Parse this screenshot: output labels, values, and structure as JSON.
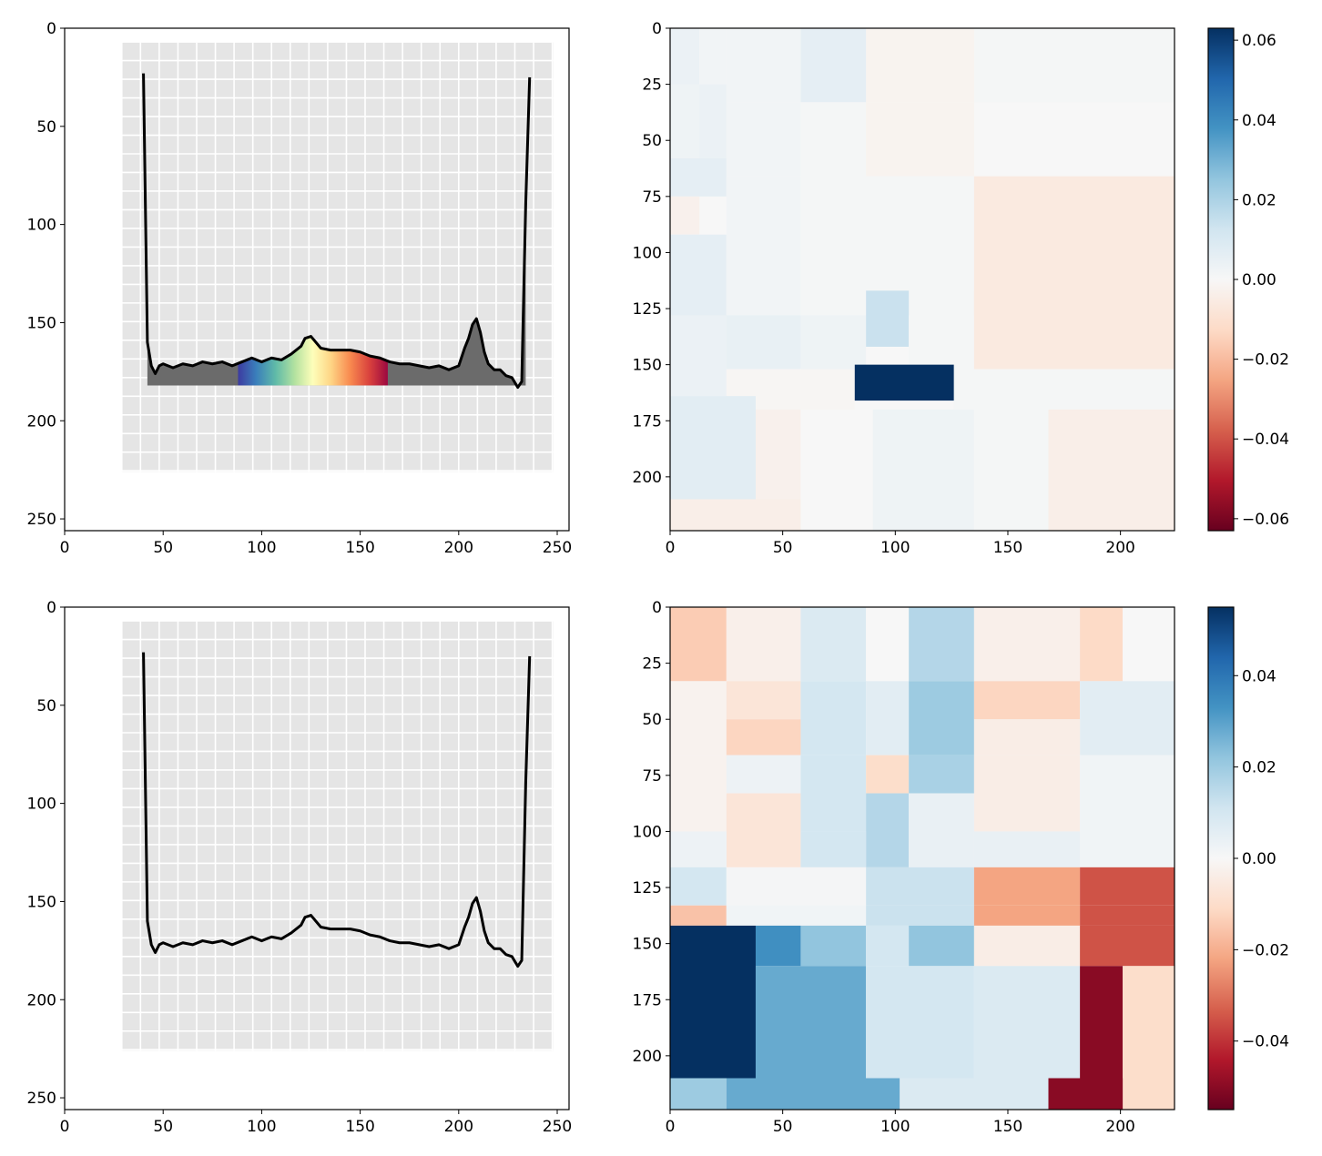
{
  "chart_data": [
    {
      "type": "line",
      "panel": "top-left",
      "xlim": [
        0,
        256
      ],
      "ylim": [
        256,
        0
      ],
      "xticks": [
        0,
        50,
        100,
        150,
        200,
        250
      ],
      "yticks": [
        0,
        50,
        100,
        150,
        200,
        250
      ],
      "tick_labels_x": [
        "0",
        "50",
        "100",
        "150",
        "200",
        "250"
      ],
      "tick_labels_y": [
        "0",
        "50",
        "100",
        "150",
        "200",
        "250"
      ],
      "highlight_x_range": [
        88,
        164
      ],
      "highlight_colormap": "Spectral_r",
      "fill_under_curve": true,
      "series": [
        {
          "x": [
            40,
            42,
            44,
            46,
            48,
            50,
            55,
            60,
            65,
            70,
            75,
            80,
            85,
            90,
            95,
            100,
            105,
            110,
            115,
            120,
            122,
            125,
            130,
            135,
            140,
            145,
            150,
            155,
            160,
            165,
            170,
            175,
            180,
            185,
            190,
            195,
            200,
            203,
            205,
            207,
            209,
            211,
            213,
            215,
            218,
            221,
            224,
            227,
            230,
            232,
            234,
            236
          ],
          "y": [
            23,
            160,
            172,
            176,
            172,
            171,
            173,
            171,
            172,
            170,
            171,
            170,
            172,
            170,
            168,
            170,
            168,
            169,
            166,
            162,
            158,
            157,
            163,
            164,
            164,
            164,
            165,
            167,
            168,
            170,
            171,
            171,
            172,
            173,
            172,
            174,
            172,
            163,
            158,
            151,
            148,
            155,
            165,
            171,
            174,
            174,
            177,
            178,
            183,
            180,
            90,
            25
          ]
        }
      ]
    },
    {
      "type": "heatmap",
      "panel": "top-right",
      "xlim": [
        0,
        224
      ],
      "ylim": [
        224,
        0
      ],
      "xticks": [
        0,
        50,
        100,
        150,
        200
      ],
      "yticks": [
        0,
        25,
        50,
        75,
        100,
        125,
        150,
        175,
        200
      ],
      "tick_labels_x": [
        "0",
        "50",
        "100",
        "150",
        "200"
      ],
      "tick_labels_y": [
        "0",
        "25",
        "50",
        "75",
        "100",
        "125",
        "150",
        "175",
        "200"
      ],
      "colorbar": {
        "vmin": -0.063,
        "vmax": 0.063,
        "ticks": [
          0.06,
          0.04,
          0.02,
          0.0,
          -0.02,
          -0.04,
          -0.06
        ],
        "tick_labels": [
          "0.06",
          "0.04",
          "0.02",
          "0.00",
          "−0.02",
          "−0.04",
          "−0.06"
        ],
        "colormap": "RdBu"
      },
      "cells": [
        {
          "x0": 0,
          "x1": 13,
          "y0": 0,
          "y1": 25,
          "v": 0.004
        },
        {
          "x0": 13,
          "x1": 25,
          "y0": 0,
          "y1": 25,
          "v": 0.002
        },
        {
          "x0": 25,
          "x1": 58,
          "y0": 0,
          "y1": 33,
          "v": 0.002
        },
        {
          "x0": 58,
          "x1": 87,
          "y0": 0,
          "y1": 33,
          "v": 0.006
        },
        {
          "x0": 87,
          "x1": 135,
          "y0": 0,
          "y1": 33,
          "v": -0.002
        },
        {
          "x0": 135,
          "x1": 224,
          "y0": 0,
          "y1": 33,
          "v": 0.001
        },
        {
          "x0": 0,
          "x1": 13,
          "y0": 25,
          "y1": 58,
          "v": 0.003
        },
        {
          "x0": 13,
          "x1": 25,
          "y0": 25,
          "y1": 58,
          "v": 0.004
        },
        {
          "x0": 25,
          "x1": 58,
          "y0": 33,
          "y1": 66,
          "v": 0.002
        },
        {
          "x0": 58,
          "x1": 87,
          "y0": 33,
          "y1": 66,
          "v": 0.001
        },
        {
          "x0": 87,
          "x1": 135,
          "y0": 33,
          "y1": 66,
          "v": -0.002
        },
        {
          "x0": 135,
          "x1": 224,
          "y0": 33,
          "y1": 66,
          "v": 0.0
        },
        {
          "x0": 0,
          "x1": 25,
          "y0": 58,
          "y1": 75,
          "v": 0.006
        },
        {
          "x0": 0,
          "x1": 13,
          "y0": 75,
          "y1": 92,
          "v": -0.003
        },
        {
          "x0": 0,
          "x1": 25,
          "y0": 92,
          "y1": 128,
          "v": 0.006
        },
        {
          "x0": 25,
          "x1": 58,
          "y0": 66,
          "y1": 128,
          "v": 0.002
        },
        {
          "x0": 58,
          "x1": 87,
          "y0": 66,
          "y1": 128,
          "v": 0.001
        },
        {
          "x0": 87,
          "x1": 135,
          "y0": 66,
          "y1": 128,
          "v": 0.001
        },
        {
          "x0": 135,
          "x1": 224,
          "y0": 66,
          "y1": 128,
          "v": -0.006
        },
        {
          "x0": 0,
          "x1": 25,
          "y0": 128,
          "y1": 164,
          "v": 0.004
        },
        {
          "x0": 25,
          "x1": 58,
          "y0": 128,
          "y1": 152,
          "v": 0.005
        },
        {
          "x0": 58,
          "x1": 87,
          "y0": 128,
          "y1": 152,
          "v": 0.003
        },
        {
          "x0": 87,
          "x1": 106,
          "y0": 117,
          "y1": 142,
          "v": 0.014
        },
        {
          "x0": 106,
          "x1": 135,
          "y0": 128,
          "y1": 152,
          "v": 0.001
        },
        {
          "x0": 135,
          "x1": 224,
          "y0": 117,
          "y1": 152,
          "v": -0.006
        },
        {
          "x0": 25,
          "x1": 82,
          "y0": 152,
          "y1": 170,
          "v": -0.001
        },
        {
          "x0": 126,
          "x1": 224,
          "y0": 152,
          "y1": 170,
          "v": 0.001
        },
        {
          "x0": 0,
          "x1": 38,
          "y0": 164,
          "y1": 210,
          "v": 0.007
        },
        {
          "x0": 38,
          "x1": 58,
          "y0": 170,
          "y1": 210,
          "v": -0.003
        },
        {
          "x0": 58,
          "x1": 90,
          "y0": 170,
          "y1": 224,
          "v": 0.0
        },
        {
          "x0": 90,
          "x1": 135,
          "y0": 170,
          "y1": 224,
          "v": 0.003
        },
        {
          "x0": 135,
          "x1": 168,
          "y0": 170,
          "y1": 224,
          "v": 0.001
        },
        {
          "x0": 168,
          "x1": 224,
          "y0": 170,
          "y1": 224,
          "v": -0.004
        },
        {
          "x0": 0,
          "x1": 58,
          "y0": 210,
          "y1": 224,
          "v": -0.004
        },
        {
          "x0": 82,
          "x1": 126,
          "y0": 150,
          "y1": 166,
          "v": 0.063
        }
      ]
    },
    {
      "type": "line",
      "panel": "bottom-left",
      "xlim": [
        0,
        256
      ],
      "ylim": [
        256,
        0
      ],
      "xticks": [
        0,
        50,
        100,
        150,
        200,
        250
      ],
      "yticks": [
        0,
        50,
        100,
        150,
        200,
        250
      ],
      "tick_labels_x": [
        "0",
        "50",
        "100",
        "150",
        "200",
        "250"
      ],
      "tick_labels_y": [
        "0",
        "50",
        "100",
        "150",
        "200",
        "250"
      ],
      "fill_under_curve": false,
      "series": [
        {
          "x": [
            40,
            42,
            44,
            46,
            48,
            50,
            55,
            60,
            65,
            70,
            75,
            80,
            85,
            90,
            95,
            100,
            105,
            110,
            115,
            120,
            122,
            125,
            130,
            135,
            140,
            145,
            150,
            155,
            160,
            165,
            170,
            175,
            180,
            185,
            190,
            195,
            200,
            203,
            205,
            207,
            209,
            211,
            213,
            215,
            218,
            221,
            224,
            227,
            230,
            232,
            234,
            236
          ],
          "y": [
            23,
            160,
            172,
            176,
            172,
            171,
            173,
            171,
            172,
            170,
            171,
            170,
            172,
            170,
            168,
            170,
            168,
            169,
            166,
            162,
            158,
            157,
            163,
            164,
            164,
            164,
            165,
            167,
            168,
            170,
            171,
            171,
            172,
            173,
            172,
            174,
            172,
            163,
            158,
            151,
            148,
            155,
            165,
            171,
            174,
            174,
            177,
            178,
            183,
            180,
            90,
            25
          ]
        }
      ]
    },
    {
      "type": "heatmap",
      "panel": "bottom-right",
      "xlim": [
        0,
        224
      ],
      "ylim": [
        224,
        0
      ],
      "xticks": [
        0,
        50,
        100,
        150,
        200
      ],
      "yticks": [
        0,
        25,
        50,
        75,
        100,
        125,
        150,
        175,
        200
      ],
      "tick_labels_x": [
        "0",
        "50",
        "100",
        "150",
        "200"
      ],
      "tick_labels_y": [
        "0",
        "25",
        "50",
        "75",
        "100",
        "125",
        "150",
        "175",
        "200"
      ],
      "colorbar": {
        "vmin": -0.055,
        "vmax": 0.055,
        "ticks": [
          0.04,
          0.02,
          0.0,
          -0.02,
          -0.04
        ],
        "tick_labels": [
          "0.04",
          "0.02",
          "0.00",
          "−0.02",
          "−0.04"
        ],
        "colormap": "RdBu"
      },
      "cells": [
        {
          "x0": 0,
          "x1": 25,
          "y0": 0,
          "y1": 33,
          "v": -0.014
        },
        {
          "x0": 25,
          "x1": 58,
          "y0": 0,
          "y1": 33,
          "v": -0.003
        },
        {
          "x0": 58,
          "x1": 87,
          "y0": 0,
          "y1": 33,
          "v": 0.008
        },
        {
          "x0": 87,
          "x1": 106,
          "y0": 0,
          "y1": 33,
          "v": 0.0
        },
        {
          "x0": 106,
          "x1": 135,
          "y0": 0,
          "y1": 33,
          "v": 0.016
        },
        {
          "x0": 135,
          "x1": 182,
          "y0": 0,
          "y1": 33,
          "v": -0.003
        },
        {
          "x0": 182,
          "x1": 201,
          "y0": 0,
          "y1": 33,
          "v": -0.011
        },
        {
          "x0": 201,
          "x1": 224,
          "y0": 0,
          "y1": 33,
          "v": 0.0
        },
        {
          "x0": 0,
          "x1": 25,
          "y0": 33,
          "y1": 66,
          "v": -0.002
        },
        {
          "x0": 25,
          "x1": 58,
          "y0": 33,
          "y1": 50,
          "v": -0.007
        },
        {
          "x0": 58,
          "x1": 87,
          "y0": 33,
          "y1": 66,
          "v": 0.01
        },
        {
          "x0": 87,
          "x1": 106,
          "y0": 33,
          "y1": 66,
          "v": 0.006
        },
        {
          "x0": 106,
          "x1": 135,
          "y0": 33,
          "y1": 66,
          "v": 0.02
        },
        {
          "x0": 135,
          "x1": 182,
          "y0": 33,
          "y1": 50,
          "v": -0.012
        },
        {
          "x0": 182,
          "x1": 224,
          "y0": 33,
          "y1": 66,
          "v": 0.006
        },
        {
          "x0": 25,
          "x1": 58,
          "y0": 50,
          "y1": 66,
          "v": -0.012
        },
        {
          "x0": 135,
          "x1": 182,
          "y0": 50,
          "y1": 66,
          "v": -0.004
        },
        {
          "x0": 0,
          "x1": 25,
          "y0": 66,
          "y1": 100,
          "v": -0.002
        },
        {
          "x0": 25,
          "x1": 58,
          "y0": 66,
          "y1": 83,
          "v": 0.003
        },
        {
          "x0": 58,
          "x1": 87,
          "y0": 66,
          "y1": 100,
          "v": 0.01
        },
        {
          "x0": 87,
          "x1": 106,
          "y0": 66,
          "y1": 83,
          "v": -0.01
        },
        {
          "x0": 106,
          "x1": 135,
          "y0": 66,
          "y1": 83,
          "v": 0.018
        },
        {
          "x0": 135,
          "x1": 182,
          "y0": 66,
          "y1": 100,
          "v": -0.004
        },
        {
          "x0": 182,
          "x1": 224,
          "y0": 66,
          "y1": 100,
          "v": 0.002
        },
        {
          "x0": 25,
          "x1": 58,
          "y0": 83,
          "y1": 116,
          "v": -0.007
        },
        {
          "x0": 87,
          "x1": 106,
          "y0": 83,
          "y1": 116,
          "v": 0.016
        },
        {
          "x0": 106,
          "x1": 135,
          "y0": 83,
          "y1": 116,
          "v": 0.004
        },
        {
          "x0": 0,
          "x1": 25,
          "y0": 100,
          "y1": 116,
          "v": 0.003
        },
        {
          "x0": 58,
          "x1": 87,
          "y0": 100,
          "y1": 116,
          "v": 0.01
        },
        {
          "x0": 135,
          "x1": 182,
          "y0": 100,
          "y1": 116,
          "v": 0.004
        },
        {
          "x0": 182,
          "x1": 224,
          "y0": 100,
          "y1": 116,
          "v": 0.002
        },
        {
          "x0": 0,
          "x1": 25,
          "y0": 116,
          "y1": 133,
          "v": 0.01
        },
        {
          "x0": 25,
          "x1": 87,
          "y0": 116,
          "y1": 133,
          "v": 0.001
        },
        {
          "x0": 87,
          "x1": 135,
          "y0": 116,
          "y1": 133,
          "v": 0.012
        },
        {
          "x0": 135,
          "x1": 182,
          "y0": 116,
          "y1": 133,
          "v": -0.022
        },
        {
          "x0": 182,
          "x1": 224,
          "y0": 116,
          "y1": 133,
          "v": -0.035
        },
        {
          "x0": 0,
          "x1": 25,
          "y0": 133,
          "y1": 142,
          "v": -0.016
        },
        {
          "x0": 25,
          "x1": 87,
          "y0": 133,
          "y1": 142,
          "v": 0.002
        },
        {
          "x0": 87,
          "x1": 135,
          "y0": 133,
          "y1": 142,
          "v": 0.012
        },
        {
          "x0": 135,
          "x1": 182,
          "y0": 133,
          "y1": 142,
          "v": -0.022
        },
        {
          "x0": 182,
          "x1": 224,
          "y0": 133,
          "y1": 142,
          "v": -0.035
        },
        {
          "x0": 0,
          "x1": 38,
          "y0": 142,
          "y1": 210,
          "v": 0.055
        },
        {
          "x0": 38,
          "x1": 58,
          "y0": 142,
          "y1": 160,
          "v": 0.034
        },
        {
          "x0": 58,
          "x1": 87,
          "y0": 142,
          "y1": 160,
          "v": 0.022
        },
        {
          "x0": 87,
          "x1": 106,
          "y0": 142,
          "y1": 160,
          "v": 0.01
        },
        {
          "x0": 106,
          "x1": 135,
          "y0": 142,
          "y1": 160,
          "v": 0.022
        },
        {
          "x0": 135,
          "x1": 182,
          "y0": 142,
          "y1": 160,
          "v": -0.004
        },
        {
          "x0": 182,
          "x1": 224,
          "y0": 142,
          "y1": 160,
          "v": -0.035
        },
        {
          "x0": 38,
          "x1": 87,
          "y0": 160,
          "y1": 210,
          "v": 0.028
        },
        {
          "x0": 87,
          "x1": 135,
          "y0": 160,
          "y1": 210,
          "v": 0.01
        },
        {
          "x0": 135,
          "x1": 182,
          "y0": 160,
          "y1": 210,
          "v": 0.008
        },
        {
          "x0": 182,
          "x1": 201,
          "y0": 160,
          "y1": 210,
          "v": -0.05
        },
        {
          "x0": 201,
          "x1": 224,
          "y0": 160,
          "y1": 224,
          "v": -0.01
        },
        {
          "x0": 0,
          "x1": 25,
          "y0": 210,
          "y1": 224,
          "v": 0.02
        },
        {
          "x0": 25,
          "x1": 102,
          "y0": 210,
          "y1": 224,
          "v": 0.028
        },
        {
          "x0": 102,
          "x1": 168,
          "y0": 210,
          "y1": 224,
          "v": 0.008
        },
        {
          "x0": 168,
          "x1": 201,
          "y0": 210,
          "y1": 224,
          "v": -0.05
        }
      ]
    }
  ]
}
